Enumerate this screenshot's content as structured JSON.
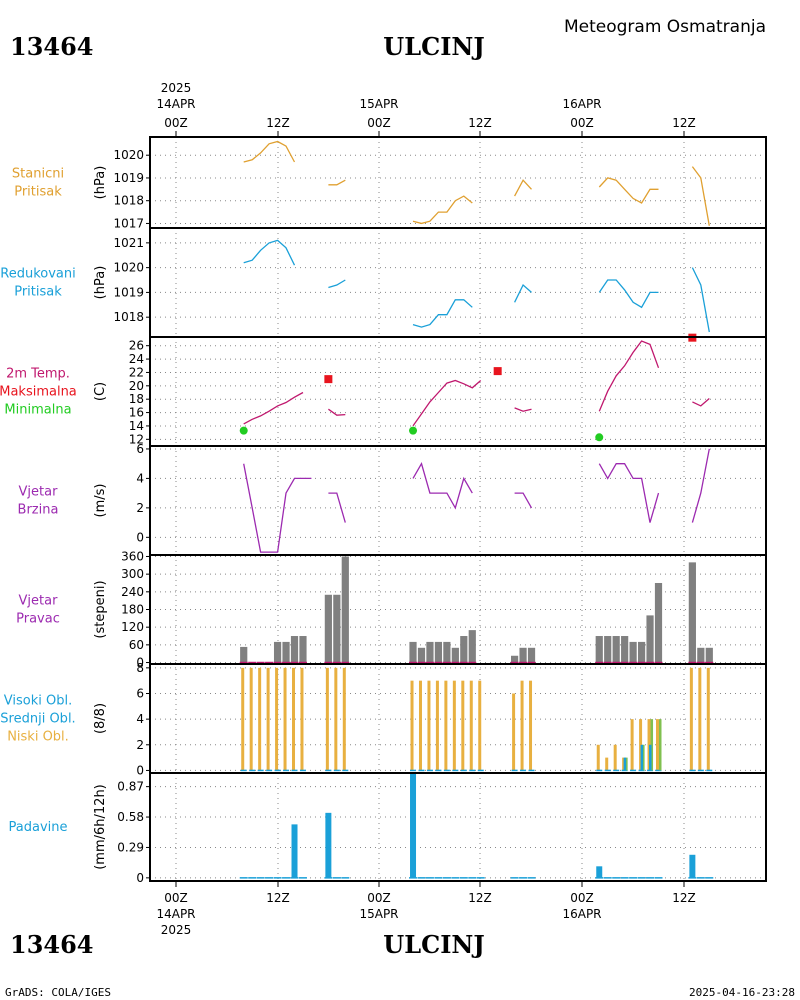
{
  "header": {
    "station_id": "13464",
    "station_name": "ULCINJ",
    "product_title": "Meteogram Osmatranja"
  },
  "top_axis": {
    "year": "2025",
    "day_labels": [
      "14APR",
      "15APR",
      "16APR"
    ],
    "hour_labels": [
      "00Z",
      "12Z",
      "00Z",
      "12Z",
      "00Z",
      "12Z"
    ]
  },
  "bottom_axis": {
    "year": "2025",
    "day_labels": [
      "14APR",
      "15APR",
      "16APR"
    ],
    "hour_labels": [
      "00Z",
      "12Z",
      "00Z",
      "12Z",
      "00Z",
      "12Z"
    ]
  },
  "footer": {
    "left": "GrADS: COLA/IGES",
    "right": "2025-04-16-23:28"
  },
  "colors": {
    "pressure": "#e0a030",
    "reduced": "#1aa0d8",
    "temp": "#c0186e",
    "max": "#e8141e",
    "min": "#22cc22",
    "wind": "#9c2ab0",
    "bar_gray": "#808080",
    "high": "#1aa0d8",
    "mid": "#80c050",
    "low": "#e8b040",
    "precip": "#1aa0d8"
  },
  "chart_data": [
    {
      "type": "line",
      "title_lines": [
        "Stanicni",
        "Pritisak"
      ],
      "ylabel": "(hPa)",
      "ylim": [
        1016.8,
        1020.8
      ],
      "yticks": [
        1017,
        1018,
        1019,
        1020
      ],
      "series": [
        {
          "color": "#e0a030",
          "segments": [
            [
              [
                8,
                1019.7
              ],
              [
                9,
                1019.8
              ],
              [
                10,
                1020.1
              ],
              [
                11,
                1020.5
              ],
              [
                12,
                1020.6
              ],
              [
                13,
                1020.4
              ],
              [
                14,
                1019.7
              ]
            ],
            [
              [
                18,
                1018.7
              ],
              [
                19,
                1018.7
              ],
              [
                20,
                1018.9
              ]
            ],
            [
              [
                28,
                1017.1
              ],
              [
                29,
                1017.0
              ],
              [
                30,
                1017.1
              ],
              [
                31,
                1017.5
              ],
              [
                32,
                1017.5
              ],
              [
                33,
                1018.0
              ],
              [
                34,
                1018.2
              ],
              [
                35,
                1017.9
              ]
            ],
            [
              [
                40,
                1018.2
              ],
              [
                41,
                1018.9
              ],
              [
                42,
                1018.5
              ]
            ],
            [
              [
                50,
                1018.6
              ],
              [
                51,
                1019.0
              ],
              [
                52,
                1018.9
              ],
              [
                53,
                1018.5
              ],
              [
                54,
                1018.1
              ],
              [
                55,
                1017.9
              ],
              [
                56,
                1018.5
              ],
              [
                57,
                1018.5
              ]
            ],
            [
              [
                61,
                1019.5
              ],
              [
                62,
                1019.0
              ],
              [
                63,
                1016.9
              ]
            ]
          ]
        }
      ]
    },
    {
      "type": "line",
      "title_lines": [
        "Redukovani",
        "Pritisak"
      ],
      "ylabel": "(hPa)",
      "ylim": [
        1017.2,
        1021.6
      ],
      "yticks": [
        1018,
        1019,
        1020,
        1021
      ],
      "series": [
        {
          "color": "#1aa0d8",
          "segments": [
            [
              [
                8,
                1020.2
              ],
              [
                9,
                1020.3
              ],
              [
                10,
                1020.7
              ],
              [
                11,
                1021.0
              ],
              [
                12,
                1021.1
              ],
              [
                13,
                1020.8
              ],
              [
                14,
                1020.1
              ]
            ],
            [
              [
                18,
                1019.2
              ],
              [
                19,
                1019.3
              ],
              [
                20,
                1019.5
              ]
            ],
            [
              [
                28,
                1017.7
              ],
              [
                29,
                1017.6
              ],
              [
                30,
                1017.7
              ],
              [
                31,
                1018.1
              ],
              [
                32,
                1018.1
              ],
              [
                33,
                1018.7
              ],
              [
                34,
                1018.7
              ],
              [
                35,
                1018.4
              ]
            ],
            [
              [
                40,
                1018.6
              ],
              [
                41,
                1019.3
              ],
              [
                42,
                1019.0
              ]
            ],
            [
              [
                50,
                1019.0
              ],
              [
                51,
                1019.5
              ],
              [
                52,
                1019.5
              ],
              [
                53,
                1019.1
              ],
              [
                54,
                1018.6
              ],
              [
                55,
                1018.4
              ],
              [
                56,
                1019.0
              ],
              [
                57,
                1019.0
              ]
            ],
            [
              [
                61,
                1020.0
              ],
              [
                62,
                1019.3
              ],
              [
                63,
                1017.4
              ]
            ]
          ]
        }
      ]
    },
    {
      "type": "line",
      "title_lines": [
        "2m Temp.",
        "Maksimalna",
        "Minimalna"
      ],
      "title_colors": [
        "#c0186e",
        "#e8141e",
        "#22cc22"
      ],
      "ylabel": "(C)",
      "ylim": [
        11,
        27.3
      ],
      "yticks": [
        12,
        14,
        16,
        18,
        20,
        22,
        24,
        26
      ],
      "series": [
        {
          "name": "2m Temp.",
          "color": "#c0186e",
          "segments": [
            [
              [
                8,
                14.3
              ],
              [
                9,
                15.0
              ],
              [
                10,
                15.5
              ],
              [
                11,
                16.2
              ],
              [
                12,
                17.0
              ],
              [
                13,
                17.5
              ],
              [
                14,
                18.3
              ],
              [
                15,
                19.0
              ]
            ],
            [
              [
                18,
                16.5
              ],
              [
                19,
                15.6
              ],
              [
                20,
                15.7
              ]
            ],
            [
              [
                28,
                14.0
              ],
              [
                29,
                15.8
              ],
              [
                30,
                17.6
              ],
              [
                31,
                19.0
              ],
              [
                32,
                20.4
              ],
              [
                33,
                20.8
              ],
              [
                34,
                20.3
              ],
              [
                35,
                19.7
              ],
              [
                36,
                20.8
              ]
            ],
            [
              [
                40,
                16.7
              ],
              [
                41,
                16.2
              ],
              [
                42,
                16.5
              ]
            ],
            [
              [
                50,
                16.2
              ],
              [
                51,
                19.2
              ],
              [
                52,
                21.5
              ],
              [
                53,
                23.0
              ],
              [
                54,
                25.0
              ],
              [
                55,
                26.7
              ],
              [
                56,
                26.2
              ],
              [
                57,
                22.7
              ]
            ],
            [
              [
                61,
                17.6
              ],
              [
                62,
                17.0
              ],
              [
                63,
                18.1
              ]
            ]
          ]
        },
        {
          "name": "Maksimalna",
          "color": "#e8141e",
          "points": [
            [
              18,
              21.0
            ],
            [
              38,
              22.2
            ],
            [
              61,
              27.2
            ]
          ]
        },
        {
          "name": "Minimalna",
          "color": "#22cc22",
          "points": [
            [
              8,
              13.3
            ],
            [
              28,
              13.3
            ],
            [
              50,
              12.3
            ]
          ]
        }
      ]
    },
    {
      "type": "line",
      "title_lines": [
        "Vjetar",
        "Brzina"
      ],
      "ylabel": "(m/s)",
      "ylim": [
        -1.2,
        6.2
      ],
      "yticks": [
        0,
        2,
        4,
        6
      ],
      "series": [
        {
          "color": "#9c2ab0",
          "segments": [
            [
              [
                8,
                5
              ],
              [
                9,
                2
              ],
              [
                10,
                -1
              ],
              [
                11,
                -1
              ],
              [
                12,
                -1
              ],
              [
                13,
                3
              ],
              [
                14,
                4
              ],
              [
                15,
                4
              ],
              [
                16,
                4
              ]
            ],
            [
              [
                18,
                3
              ],
              [
                19,
                3
              ],
              [
                20,
                1
              ]
            ],
            [
              [
                28,
                4
              ],
              [
                29,
                5
              ],
              [
                30,
                3
              ],
              [
                31,
                3
              ],
              [
                32,
                3
              ],
              [
                33,
                2
              ],
              [
                34,
                4
              ],
              [
                35,
                3
              ]
            ],
            [
              [
                40,
                3
              ],
              [
                41,
                3
              ],
              [
                42,
                2
              ]
            ],
            [
              [
                50,
                5
              ],
              [
                51,
                4
              ],
              [
                52,
                5
              ],
              [
                53,
                5
              ],
              [
                54,
                4
              ],
              [
                55,
                4
              ],
              [
                56,
                1
              ],
              [
                57,
                3
              ]
            ],
            [
              [
                61,
                1
              ],
              [
                62,
                3
              ],
              [
                63,
                6
              ]
            ]
          ]
        }
      ]
    },
    {
      "type": "bar",
      "title_lines": [
        "Vjetar",
        "Pravac"
      ],
      "ylabel": "(stepeni)",
      "ylim": [
        -5,
        365
      ],
      "yticks": [
        0,
        60,
        120,
        180,
        240,
        300,
        360
      ],
      "bars": [
        [
          8,
          53
        ],
        [
          9,
          0
        ],
        [
          10,
          0
        ],
        [
          11,
          0
        ],
        [
          12,
          70
        ],
        [
          13,
          70
        ],
        [
          14,
          90
        ],
        [
          15,
          90
        ],
        [
          18,
          230
        ],
        [
          19,
          230
        ],
        [
          20,
          360
        ],
        [
          28,
          70
        ],
        [
          29,
          50
        ],
        [
          30,
          70
        ],
        [
          31,
          70
        ],
        [
          32,
          70
        ],
        [
          33,
          50
        ],
        [
          34,
          90
        ],
        [
          35,
          110
        ],
        [
          40,
          23
        ],
        [
          41,
          50
        ],
        [
          42,
          50
        ],
        [
          50,
          90
        ],
        [
          51,
          90
        ],
        [
          52,
          90
        ],
        [
          53,
          90
        ],
        [
          54,
          70
        ],
        [
          55,
          70
        ],
        [
          56,
          160
        ],
        [
          57,
          270
        ],
        [
          61,
          340
        ],
        [
          62,
          50
        ],
        [
          63,
          50
        ]
      ]
    },
    {
      "type": "bar",
      "title_lines": [
        "Visoki Obl.",
        "Srednji Obl.",
        "Niski Obl."
      ],
      "title_colors": [
        "#1aa0d8",
        "#1aa0d8",
        "#e8b040"
      ],
      "ylabel": "(8/8)",
      "ylim": [
        -0.2,
        8.3
      ],
      "yticks": [
        0,
        2,
        4,
        6,
        8
      ],
      "series": [
        {
          "name": "Niski Obl.",
          "values": [
            [
              8,
              8
            ],
            [
              9,
              8
            ],
            [
              10,
              8
            ],
            [
              11,
              8
            ],
            [
              12,
              8
            ],
            [
              13,
              8
            ],
            [
              14,
              8
            ],
            [
              15,
              8
            ],
            [
              18,
              8
            ],
            [
              19,
              8
            ],
            [
              20,
              8
            ],
            [
              28,
              7
            ],
            [
              29,
              7
            ],
            [
              30,
              7
            ],
            [
              31,
              7
            ],
            [
              32,
              7
            ],
            [
              33,
              7
            ],
            [
              34,
              7
            ],
            [
              35,
              7
            ],
            [
              36,
              7
            ],
            [
              40,
              6
            ],
            [
              41,
              7
            ],
            [
              42,
              7
            ],
            [
              50,
              2
            ],
            [
              51,
              1
            ],
            [
              52,
              2
            ],
            [
              53,
              1
            ],
            [
              54,
              4
            ],
            [
              55,
              4
            ],
            [
              56,
              4
            ],
            [
              57,
              4
            ],
            [
              61,
              8
            ],
            [
              62,
              8
            ],
            [
              63,
              8
            ]
          ]
        },
        {
          "name": "Srednji Obl.",
          "values": [
            [
              53,
              1
            ],
            [
              55,
              2
            ],
            [
              56,
              4
            ],
            [
              57,
              4
            ]
          ]
        },
        {
          "name": "Visoki Obl.",
          "values": [
            [
              53,
              1
            ],
            [
              55,
              2
            ],
            [
              56,
              2
            ]
          ]
        }
      ]
    },
    {
      "type": "bar",
      "title_lines": [
        "Padavine"
      ],
      "ylabel": "(mm/6h/12h)",
      "ylim": [
        -0.03,
        1.0
      ],
      "yticks": [
        0,
        0.29,
        0.58,
        0.87
      ],
      "ytick_labels": [
        "0",
        "0.29",
        "0.58",
        "0.87"
      ],
      "bars": [
        [
          14,
          0.51
        ],
        [
          18,
          0.62
        ],
        [
          28,
          1.0
        ],
        [
          50,
          0.11
        ],
        [
          61,
          0.22
        ]
      ],
      "trace_points": [
        8,
        9,
        10,
        11,
        12,
        13,
        14,
        15,
        18,
        19,
        20,
        28,
        29,
        30,
        31,
        32,
        33,
        34,
        35,
        36,
        40,
        41,
        42,
        50,
        51,
        52,
        53,
        54,
        55,
        56,
        57,
        61,
        62,
        63
      ]
    }
  ]
}
